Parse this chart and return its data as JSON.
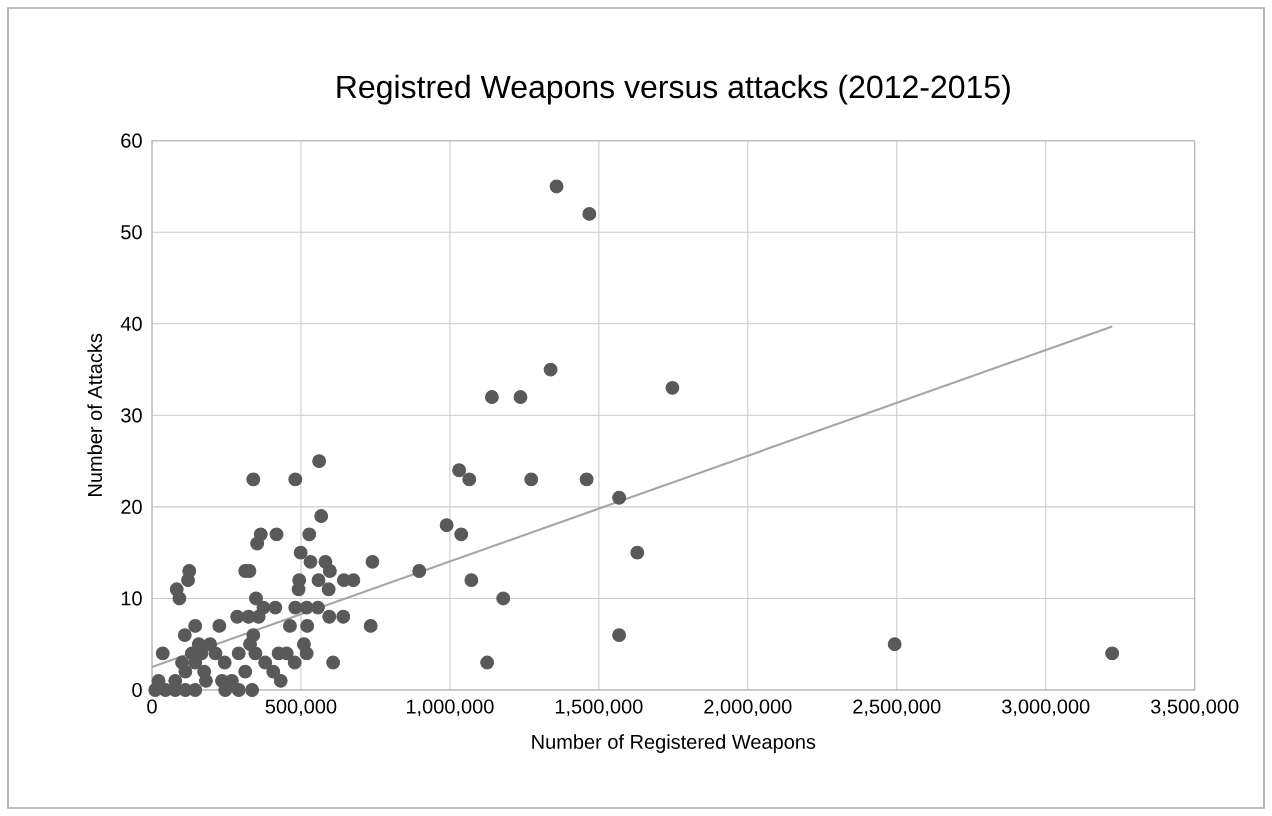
{
  "chart_data": {
    "type": "scatter",
    "title": "Registred Weapons versus attacks (2012-2015)",
    "xlabel": "Number of Registered Weapons",
    "ylabel": "Number of Attacks",
    "xlim": [
      0,
      3500000
    ],
    "ylim": [
      0,
      60
    ],
    "xticks": [
      0,
      {
        "value": 500000,
        "label": "500,000"
      },
      {
        "value": 1000000,
        "label": "1,000,000"
      },
      {
        "value": 1500000,
        "label": "1,500,000"
      },
      {
        "value": 2000000,
        "label": "2,000,000"
      },
      {
        "value": 2500000,
        "label": "2,500,000"
      },
      {
        "value": 3000000,
        "label": "3,000,000"
      },
      {
        "value": 3500000,
        "label": "3,500,000"
      }
    ],
    "yticks": [
      0,
      10,
      20,
      30,
      40,
      50,
      60
    ],
    "grid": true,
    "series": [
      {
        "marker": "circle",
        "color": "#595959",
        "x": [
          1358000,
          1468000,
          1338000,
          1141000,
          1237000,
          1747000,
          340000,
          481000,
          561000,
          1031000,
          1065000,
          1273000,
          1459000,
          1568000,
          989000,
          1038000,
          568000,
          1629000,
          1072000,
          1179000,
          1568000,
          1125000,
          897000,
          740000,
          734000,
          642000,
          676000,
          644000,
          608000,
          365000,
          353000,
          418000,
          528000,
          499000,
          532000,
          582000,
          597000,
          559000,
          593000,
          494000,
          492000,
          313000,
          327000,
          349000,
          374000,
          414000,
          481000,
          519000,
          557000,
          521000,
          463000,
          595000,
          358000,
          324000,
          286000,
          226000,
          340000,
          329000,
          145000,
          110000,
          121000,
          125000,
          83000,
          92000,
          36000,
          425000,
          452000,
          510000,
          519000,
          479000,
          432000,
          407000,
          380000,
          347000,
          313000,
          291000,
          244000,
          213000,
          166000,
          195000,
          157000,
          145000,
          112000,
          78000,
          175000,
          235000,
          268000,
          336000,
          291000,
          246000,
          11000,
          45000,
          78000,
          112000,
          145000,
          22000,
          101000,
          134000,
          181000,
          2493000,
          3223000
        ],
        "values": [
          55,
          52,
          35,
          32,
          32,
          33,
          23,
          23,
          25,
          24,
          23,
          23,
          23,
          21,
          18,
          17,
          19,
          15,
          12,
          10,
          6,
          3,
          13,
          14,
          7,
          8,
          12,
          12,
          3,
          17,
          16,
          17,
          17,
          15,
          14,
          14,
          13,
          12,
          11,
          12,
          11,
          13,
          13,
          10,
          9,
          9,
          9,
          9,
          9,
          7,
          7,
          8,
          8,
          8,
          8,
          7,
          6,
          5,
          7,
          6,
          12,
          13,
          11,
          10,
          4,
          4,
          4,
          5,
          4,
          3,
          1,
          2,
          3,
          4,
          2,
          4,
          3,
          4,
          4,
          5,
          5,
          3,
          2,
          1,
          2,
          1,
          1,
          0,
          0,
          0,
          0,
          0,
          0,
          0,
          0,
          1,
          3,
          4,
          1,
          5,
          4
        ]
      },
      {
        "type": "line",
        "marker": "none",
        "color": "#a6a6a6",
        "x": [
          0,
          3223000
        ],
        "values": [
          2.5,
          39.7
        ]
      }
    ]
  }
}
